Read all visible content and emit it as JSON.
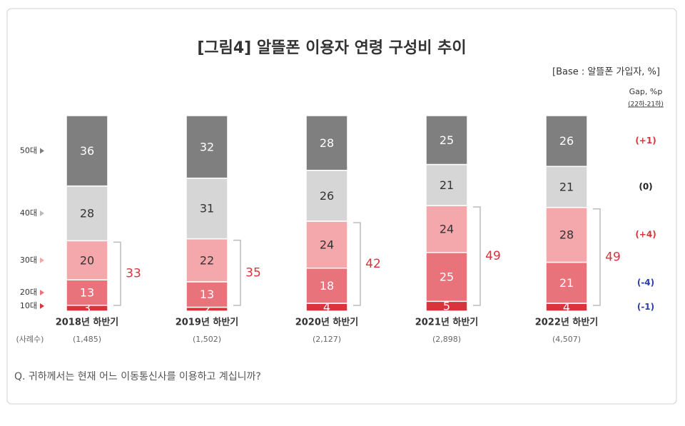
{
  "chart_data": {
    "type": "stacked_bar",
    "title": "[그림4] 알뜰폰 이용자 연령 구성비 추이",
    "subtitle": "[Base : 알뜰폰 가입자, %]",
    "gap_title": "Gap, %p",
    "gap_subtitle": "(22하-21하)",
    "sample_title": "(사례수)",
    "note": "Q. 귀하께서는 현재 어느 이동통신사를 이용하고 계십니까?",
    "categories": [
      "2018년 하반기",
      "2019년 하반기",
      "2020년 하반기",
      "2021년 하반기",
      "2022년 하반기"
    ],
    "sample_sizes": [
      "(1,485)",
      "(1,502)",
      "(2,127)",
      "(2,898)",
      "(4,507)"
    ],
    "series": [
      {
        "name": "10대",
        "color": "#d8343c",
        "text_color": "#ffffff",
        "gap": "(-1)",
        "gap_color": "#2b3ea8",
        "values": [
          3,
          2,
          4,
          5,
          4
        ]
      },
      {
        "name": "20대",
        "color": "#e8737a",
        "text_color": "#ffffff",
        "gap": "(-4)",
        "gap_color": "#2b3ea8",
        "values": [
          13,
          13,
          18,
          25,
          21
        ]
      },
      {
        "name": "30대",
        "color": "#f4a8ab",
        "text_color": "#333333",
        "gap": "(+4)",
        "gap_color": "#d8343c",
        "values": [
          20,
          22,
          24,
          24,
          28
        ]
      },
      {
        "name": "40대",
        "color": "#d6d6d6",
        "text_color": "#333333",
        "gap": "(0)",
        "gap_color": "#222222",
        "values": [
          28,
          31,
          26,
          21,
          21
        ]
      },
      {
        "name": "50대",
        "color": "#7f7f7f",
        "text_color": "#ffffff",
        "gap": "(+1)",
        "gap_color": "#d8343c",
        "values": [
          36,
          32,
          28,
          25,
          26
        ]
      }
    ],
    "bracket_totals": [
      33,
      35,
      42,
      49,
      49
    ],
    "bracket_color": "#d8343c"
  }
}
